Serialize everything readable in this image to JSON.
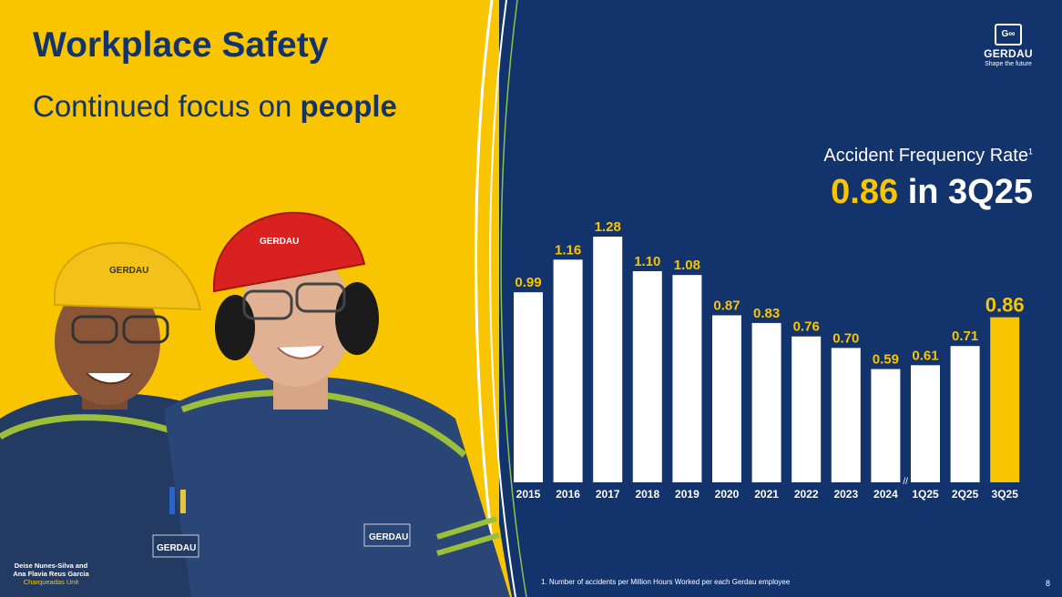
{
  "header": {
    "title": "Workplace Safety",
    "subtitle_prefix": "Continued focus on",
    "subtitle_emphasis": "people"
  },
  "logo": {
    "icon": "gerdau-logo-icon",
    "name": "GERDAU",
    "tagline": "Shape the future"
  },
  "metric": {
    "label": "Accident Frequency Rate",
    "footnote_marker": "1",
    "value": "0.86",
    "period": "in 3Q25"
  },
  "photo": {
    "caption_names": "Deise Nunes-Silva and Ana Flavia Reus Garcia",
    "caption_unit": "Charqueadas Unit",
    "helmet_text": "GERDAU"
  },
  "chart_data": {
    "type": "bar",
    "title": "",
    "xlabel": "",
    "ylabel": "",
    "ylim": [
      0,
      1.28
    ],
    "categories": [
      "2015",
      "2016",
      "2017",
      "2018",
      "2019",
      "2020",
      "2021",
      "2022",
      "2023",
      "2024",
      "1Q25",
      "2Q25",
      "3Q25"
    ],
    "values": [
      0.99,
      1.16,
      1.28,
      1.1,
      1.08,
      0.87,
      0.83,
      0.76,
      0.7,
      0.59,
      0.61,
      0.71,
      0.86
    ],
    "value_labels": [
      "0.99",
      "1.16",
      "1.28",
      "1.10",
      "1.08",
      "0.87",
      "0.83",
      "0.76",
      "0.70",
      "0.59",
      "0.61",
      "0.71",
      "0.86"
    ],
    "highlight_category": "3Q25",
    "axis_break_marker": "//",
    "grid": false,
    "colors": {
      "bar": "#ffffff",
      "highlight": "#f8c500",
      "label": "#f8c500",
      "axis_label": "#ffffff"
    }
  },
  "footer": {
    "footnote": "1. Number of accidents per Million Hours Worked per each  Gerdau employee",
    "page_number": "8"
  },
  "colors": {
    "navy": "#12336b",
    "yellow": "#f8c500",
    "white": "#ffffff"
  }
}
